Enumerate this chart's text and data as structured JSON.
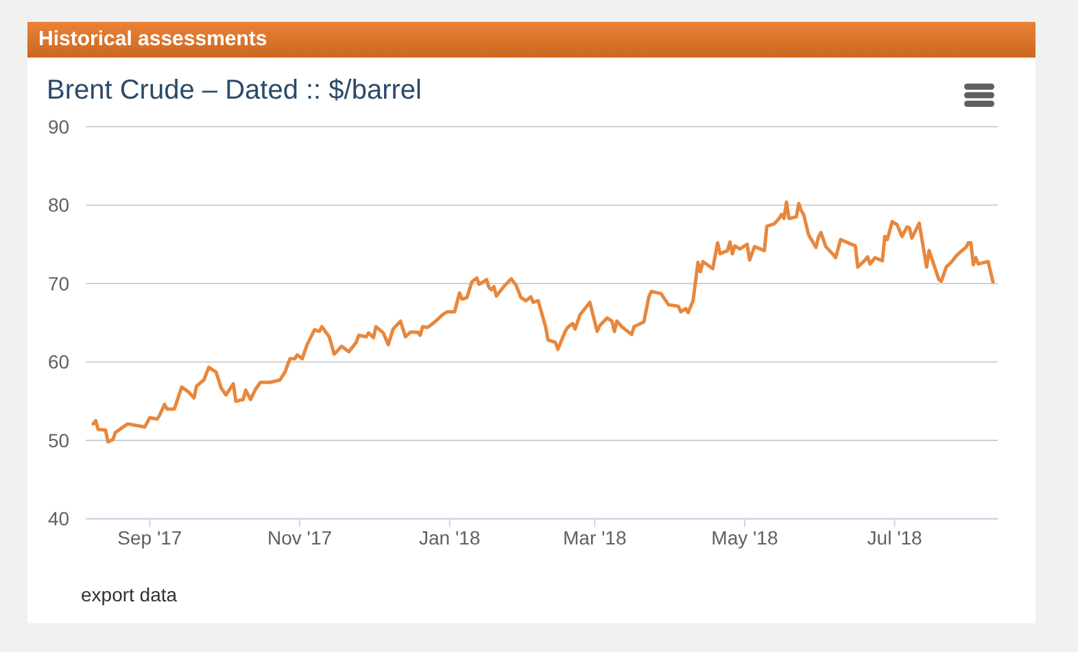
{
  "chart_data": {
    "type": "line",
    "title": "Brent Crude – Dated :: $/barrel",
    "annotations": [
      "Historical assessments",
      "export data"
    ],
    "color": "#e8873c",
    "x": [
      "2017-08-09",
      "2017-08-10",
      "2017-08-11",
      "2017-08-14",
      "2017-08-15",
      "2017-08-17",
      "2017-08-18",
      "2017-08-23",
      "2017-08-30",
      "2017-09-01",
      "2017-09-04",
      "2017-09-05",
      "2017-09-07",
      "2017-09-08",
      "2017-09-11",
      "2017-09-14",
      "2017-09-17",
      "2017-09-19",
      "2017-09-20",
      "2017-09-23",
      "2017-09-25",
      "2017-09-28",
      "2017-09-30",
      "2017-10-02",
      "2017-10-05",
      "2017-10-06",
      "2017-10-09",
      "2017-10-10",
      "2017-10-12",
      "2017-10-14",
      "2017-10-16",
      "2017-10-20",
      "2017-10-24",
      "2017-10-26",
      "2017-10-28",
      "2017-10-30",
      "2017-10-31",
      "2017-11-02",
      "2017-11-04",
      "2017-11-07",
      "2017-11-09",
      "2017-11-10",
      "2017-11-13",
      "2017-11-15",
      "2017-11-16",
      "2017-11-18",
      "2017-11-21",
      "2017-11-24",
      "2017-11-25",
      "2017-11-28",
      "2017-11-29",
      "2017-12-01",
      "2017-12-02",
      "2017-12-05",
      "2017-12-07",
      "2017-12-09",
      "2017-12-12",
      "2017-12-14",
      "2017-12-16",
      "2017-12-19",
      "2017-12-20",
      "2017-12-21",
      "2017-12-23",
      "2017-12-26",
      "2017-12-29",
      "2017-12-31",
      "2018-01-03",
      "2018-01-05",
      "2018-01-06",
      "2018-01-08",
      "2018-01-10",
      "2018-01-12",
      "2018-01-13",
      "2018-01-15",
      "2018-01-16",
      "2018-01-17",
      "2018-01-18",
      "2018-01-19",
      "2018-01-20",
      "2018-01-23",
      "2018-01-26",
      "2018-01-28",
      "2018-01-30",
      "2018-02-01",
      "2018-02-03",
      "2018-02-04",
      "2018-02-06",
      "2018-02-09",
      "2018-02-10",
      "2018-02-13",
      "2018-02-14",
      "2018-02-17",
      "2018-02-18",
      "2018-02-20",
      "2018-02-21",
      "2018-02-23",
      "2018-02-27",
      "2018-03-02",
      "2018-03-03",
      "2018-03-06",
      "2018-03-08",
      "2018-03-09",
      "2018-03-10",
      "2018-03-12",
      "2018-03-16",
      "2018-03-17",
      "2018-03-19",
      "2018-03-21",
      "2018-03-23",
      "2018-03-24",
      "2018-03-28",
      "2018-03-31",
      "2018-04-04",
      "2018-04-05",
      "2018-04-07",
      "2018-04-08",
      "2018-04-10",
      "2018-04-12",
      "2018-04-13",
      "2018-04-14",
      "2018-04-18",
      "2018-04-20",
      "2018-04-21",
      "2018-04-24",
      "2018-04-25",
      "2018-04-26",
      "2018-04-27",
      "2018-04-29",
      "2018-05-02",
      "2018-05-03",
      "2018-05-05",
      "2018-05-09",
      "2018-05-10",
      "2018-05-13",
      "2018-05-15",
      "2018-05-16",
      "2018-05-17",
      "2018-05-18",
      "2018-05-19",
      "2018-05-22",
      "2018-05-23",
      "2018-05-24",
      "2018-05-25",
      "2018-05-27",
      "2018-05-30",
      "2018-05-31",
      "2018-06-01",
      "2018-06-03",
      "2018-06-06",
      "2018-06-07",
      "2018-06-09",
      "2018-06-15",
      "2018-06-16",
      "2018-06-19",
      "2018-06-20",
      "2018-06-21",
      "2018-06-23",
      "2018-06-26",
      "2018-06-27",
      "2018-06-28",
      "2018-06-30",
      "2018-07-02",
      "2018-07-04",
      "2018-07-06",
      "2018-07-07",
      "2018-07-08",
      "2018-07-11",
      "2018-07-14",
      "2018-07-15",
      "2018-07-19",
      "2018-07-20",
      "2018-07-22",
      "2018-07-24",
      "2018-07-26",
      "2018-07-28",
      "2018-07-30",
      "2018-07-31",
      "2018-08-01",
      "2018-08-02",
      "2018-08-03",
      "2018-08-04",
      "2018-08-08",
      "2018-08-10"
    ],
    "values": [
      52.1,
      52.5,
      51.4,
      51.3,
      49.8,
      50.1,
      51.0,
      52.1,
      51.7,
      52.9,
      52.7,
      53.2,
      54.6,
      54.0,
      54.0,
      56.8,
      56.1,
      55.4,
      56.9,
      57.7,
      59.3,
      58.7,
      56.7,
      55.8,
      57.2,
      55.0,
      55.2,
      56.4,
      55.2,
      56.5,
      57.4,
      57.4,
      57.7,
      58.7,
      60.4,
      60.4,
      60.9,
      60.4,
      62.2,
      64.1,
      63.9,
      64.5,
      63.2,
      61.0,
      61.3,
      62.0,
      61.3,
      62.5,
      63.4,
      63.2,
      63.7,
      63.1,
      64.5,
      63.7,
      62.2,
      64.2,
      65.2,
      63.2,
      63.8,
      63.8,
      63.4,
      64.5,
      64.4,
      65.1,
      66.0,
      66.4,
      66.4,
      68.8,
      68.0,
      68.2,
      70.2,
      70.7,
      69.9,
      70.3,
      70.5,
      69.5,
      69.2,
      69.6,
      68.4,
      69.6,
      70.6,
      69.8,
      68.2,
      67.8,
      68.3,
      67.6,
      67.8,
      64.5,
      62.8,
      62.5,
      61.6,
      63.9,
      64.4,
      64.9,
      64.2,
      66.0,
      67.6,
      63.9,
      64.6,
      65.6,
      65.2,
      63.9,
      65.2,
      64.5,
      63.5,
      64.5,
      64.8,
      65.1,
      68.3,
      69.0,
      68.7,
      67.3,
      67.1,
      66.4,
      66.8,
      66.3,
      67.8,
      72.7,
      71.5,
      72.8,
      71.9,
      75.2,
      73.8,
      74.2,
      75.3,
      73.8,
      74.8,
      74.4,
      75.0,
      73.0,
      74.7,
      74.2,
      77.3,
      77.6,
      78.3,
      78.8,
      78.3,
      80.4,
      78.3,
      78.5,
      80.2,
      79.3,
      78.8,
      76.2,
      74.6,
      75.9,
      76.5,
      74.7,
      73.7,
      73.3,
      75.6,
      74.8,
      72.1,
      73.0,
      73.4,
      72.5,
      73.3,
      72.9,
      76.0,
      75.6,
      77.9,
      77.5,
      76.0,
      77.2,
      77.1,
      75.8,
      77.7,
      72.1,
      74.2,
      70.5,
      70.3,
      72.1,
      72.7,
      73.5,
      74.1,
      74.6,
      75.2,
      75.2,
      72.4,
      73.3,
      72.5,
      72.8,
      70.2
    ],
    "xlim": [
      "2017-08-06",
      "2018-08-12"
    ],
    "xticks": [
      {
        "value": "2017-09-01",
        "label": "Sep '17"
      },
      {
        "value": "2017-11-01",
        "label": "Nov '17"
      },
      {
        "value": "2018-01-01",
        "label": "Jan '18"
      },
      {
        "value": "2018-03-01",
        "label": "Mar '18"
      },
      {
        "value": "2018-05-01",
        "label": "May '18"
      },
      {
        "value": "2018-07-01",
        "label": "Jul '18"
      }
    ],
    "ylim": [
      40,
      90
    ],
    "yticks": [
      40,
      50,
      60,
      70,
      80,
      90
    ],
    "grid": "y"
  }
}
